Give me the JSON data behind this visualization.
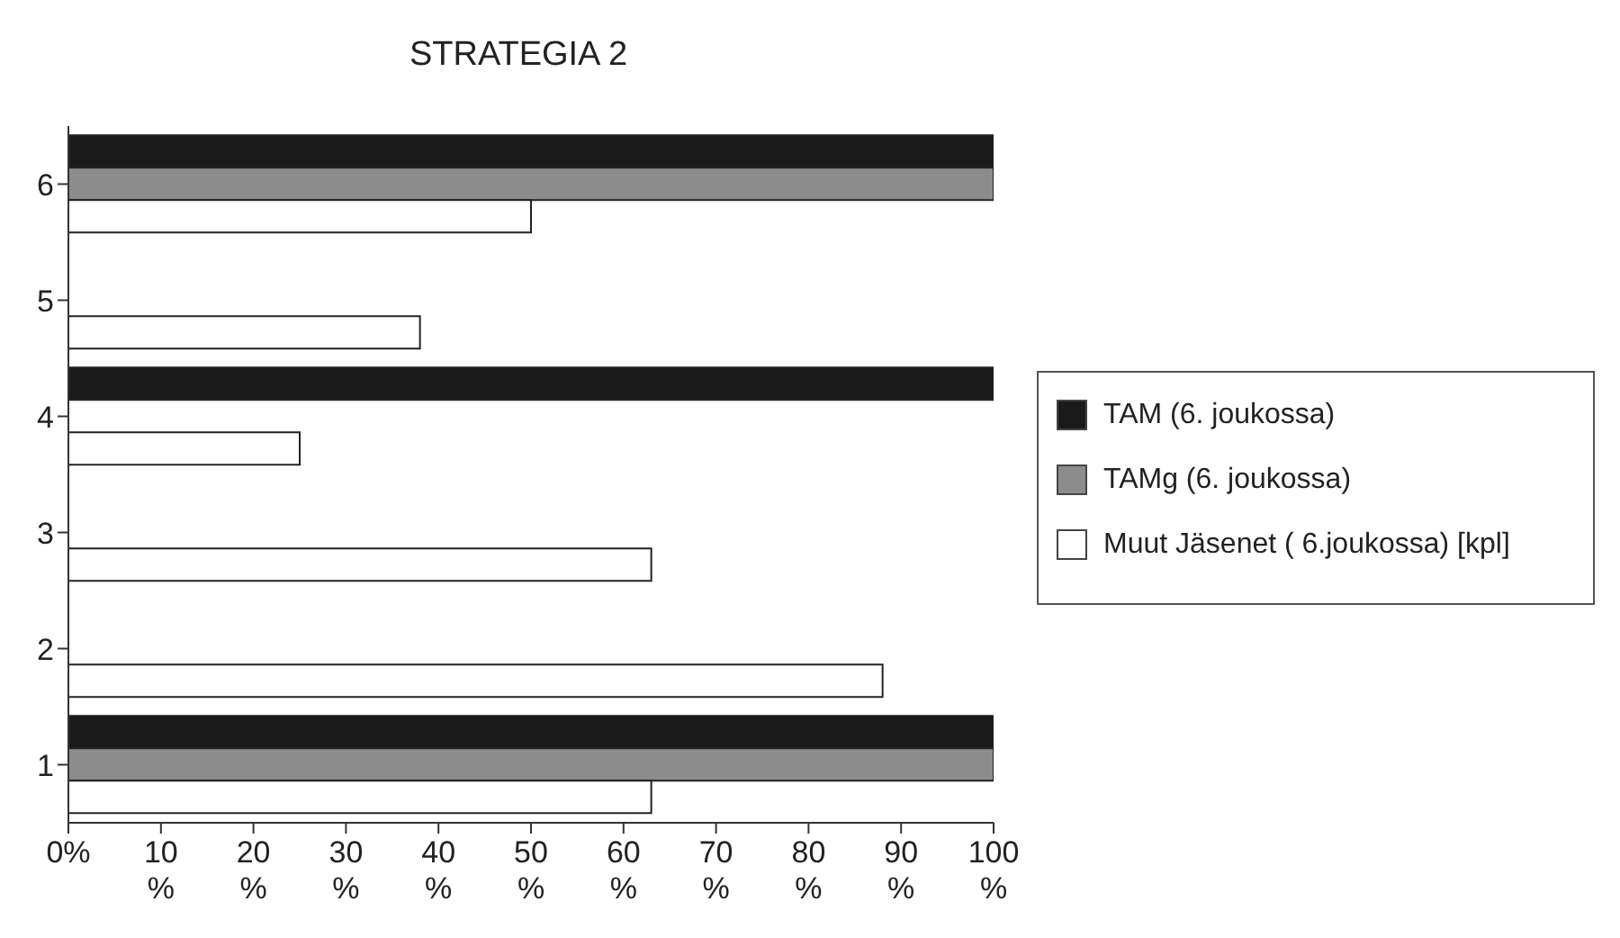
{
  "chart_data": {
    "type": "bar",
    "orientation": "horizontal",
    "title": "STRATEGIA 2",
    "categories": [
      "6",
      "5",
      "4",
      "3",
      "2",
      "1"
    ],
    "series": [
      {
        "name": "TAM (6. joukossa)",
        "color": "#1a1a1a",
        "values": [
          100,
          0,
          100,
          0,
          0,
          100
        ]
      },
      {
        "name": "TAMg (6. joukossa)",
        "color": "#8c8c8c",
        "values": [
          100,
          0,
          0,
          0,
          0,
          100
        ]
      },
      {
        "name": "Muut Jäsenet ( 6.joukossa) [kpl]",
        "color": "#ffffff",
        "values": [
          50,
          38,
          25,
          63,
          88,
          63
        ]
      }
    ],
    "xlim": [
      0,
      100
    ],
    "xticks": [
      {
        "value": 0,
        "label": "0%"
      },
      {
        "value": 10,
        "label": "10 %"
      },
      {
        "value": 20,
        "label": "20 %"
      },
      {
        "value": 30,
        "label": "30 %"
      },
      {
        "value": 40,
        "label": "40 %"
      },
      {
        "value": 50,
        "label": "50 %"
      },
      {
        "value": 60,
        "label": "60 %"
      },
      {
        "value": 70,
        "label": "70 %"
      },
      {
        "value": 80,
        "label": "80 %"
      },
      {
        "value": 90,
        "label": "90 %"
      },
      {
        "value": 100,
        "label": "100 %"
      }
    ],
    "legend": "right"
  }
}
